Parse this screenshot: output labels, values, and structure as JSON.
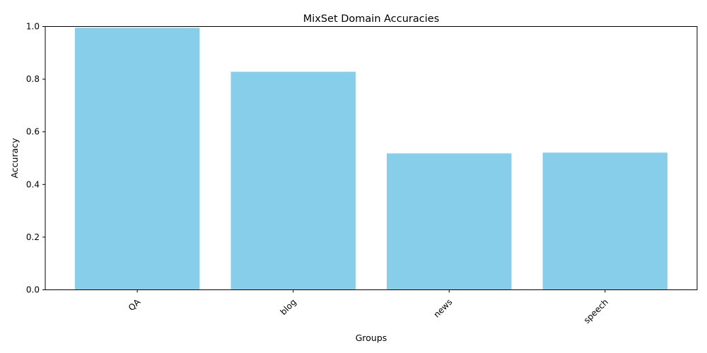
{
  "chart_data": {
    "type": "bar",
    "title": "MixSet Domain Accuracies",
    "xlabel": "Groups",
    "ylabel": "Accuracy",
    "categories": [
      "QA",
      "blog",
      "news",
      "speech"
    ],
    "values": [
      0.995,
      0.828,
      0.518,
      0.521
    ],
    "ylim": [
      0,
      1.0
    ],
    "yticks": [
      "0.0",
      "0.2",
      "0.4",
      "0.6",
      "0.8",
      "1.0"
    ],
    "bar_color": "#87CEEB",
    "grid": false,
    "legend": "none"
  }
}
